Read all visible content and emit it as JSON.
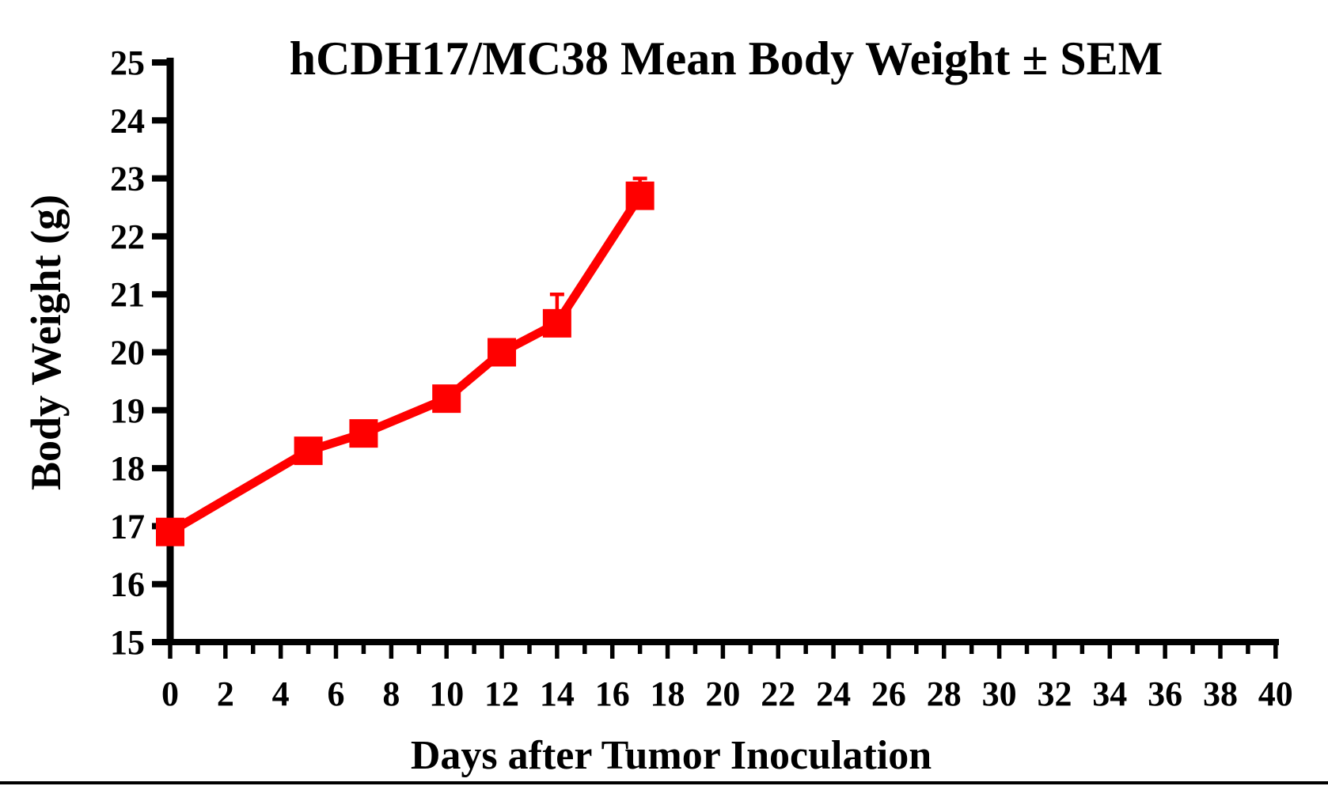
{
  "page": {
    "background": "#ffffff"
  },
  "chart_data": {
    "type": "line",
    "title": "hCDH17/MC38 Mean Body Weight ± SEM",
    "xlabel": "Days after Tumor Inoculation",
    "ylabel": "Body Weight (g)",
    "x": [
      0,
      5,
      7,
      10,
      12,
      14,
      17
    ],
    "series": [
      {
        "name": "hCDH17/MC38 mean body weight",
        "values": [
          16.9,
          18.3,
          18.6,
          19.2,
          20.0,
          20.5,
          22.7
        ],
        "sem_upper": [
          0,
          0,
          0,
          0,
          0,
          0.5,
          0.3
        ],
        "color": "#ff0000",
        "marker": "square"
      }
    ],
    "xlim": [
      0,
      40
    ],
    "ylim": [
      15,
      25
    ],
    "x_axis": {
      "major_ticks": [
        0,
        2,
        4,
        6,
        8,
        10,
        12,
        14,
        16,
        18,
        20,
        22,
        24,
        26,
        28,
        30,
        32,
        34,
        36,
        38,
        40
      ],
      "minor_ticks": [
        1,
        3,
        5,
        7,
        9,
        11,
        13,
        15,
        17,
        19,
        21,
        23,
        25,
        27,
        29,
        31,
        33,
        35,
        37,
        39
      ]
    },
    "y_axis": {
      "ticks": [
        15,
        16,
        17,
        18,
        19,
        20,
        21,
        22,
        23,
        24,
        25
      ]
    },
    "grid": false,
    "legend": "none",
    "axis_color": "#000000"
  }
}
